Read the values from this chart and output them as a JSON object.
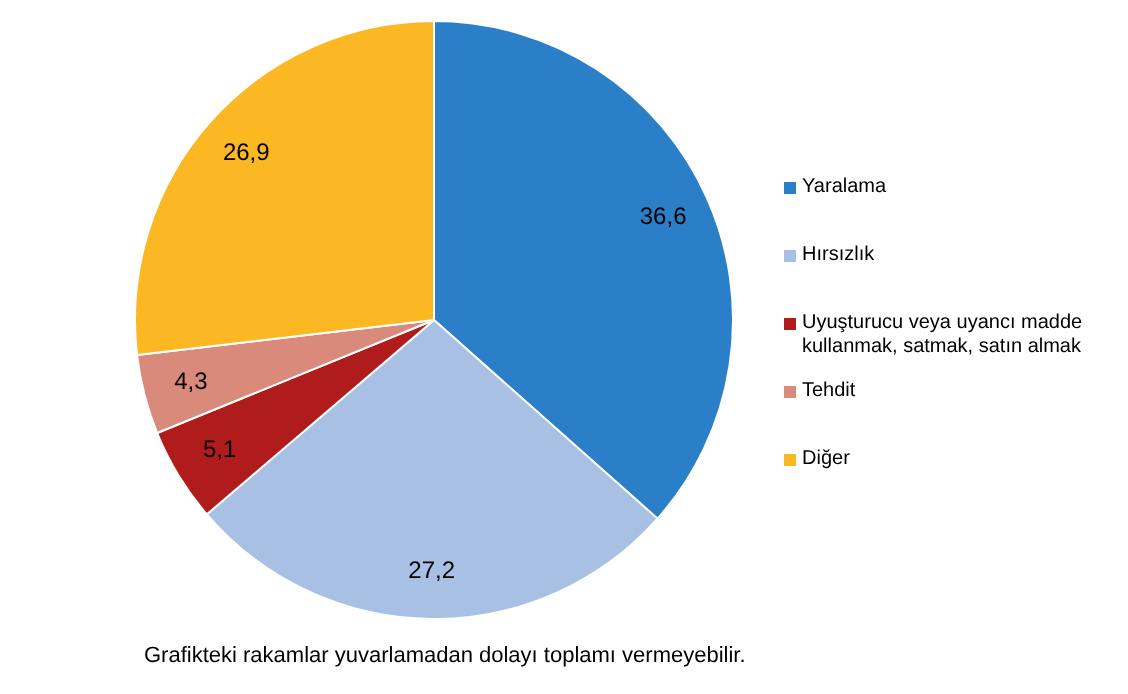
{
  "chart_data": {
    "type": "pie",
    "categories": [
      "Yaralama",
      "Hırsızlık",
      "Uyuşturucu veya uyancı madde kullanmak, satmak, satın almak",
      "Tehdit",
      "Diğer"
    ],
    "values": [
      36.6,
      27.2,
      5.1,
      4.3,
      26.9
    ],
    "colors": [
      "#2a7fc8",
      "#a8c0e4",
      "#b01c1c",
      "#d98a7a",
      "#fbb823"
    ],
    "value_labels": [
      "36,6",
      "27,2",
      "5,1",
      "4,3",
      "26,9"
    ],
    "legend": "right",
    "annotations": [
      "Grafikteki rakamlar yuvarlamadan dolayı toplamı vermeyebilir."
    ]
  }
}
